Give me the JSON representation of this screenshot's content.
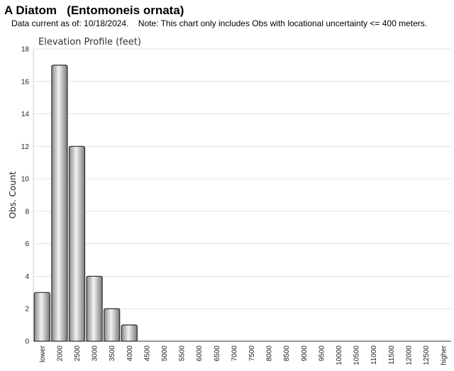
{
  "header": {
    "title": "A Diatom   (Entomoneis ornata)",
    "note": "Data current as of: 10/18/2024.    Note: This chart only includes Obs with locational uncertainty <= 400 meters."
  },
  "chart_data": {
    "type": "bar",
    "title": "Elevation Profile (feet)",
    "xlabel": "",
    "ylabel": "Obs. Count",
    "categories": [
      "lower",
      "2000",
      "2500",
      "3000",
      "3500",
      "4000",
      "4500",
      "5000",
      "5500",
      "6000",
      "6500",
      "7000",
      "7500",
      "8000",
      "8500",
      "9000",
      "9500",
      "10000",
      "10500",
      "11000",
      "11500",
      "12000",
      "12500",
      "higher"
    ],
    "values": [
      3,
      17,
      12,
      4,
      2,
      1,
      0,
      0,
      0,
      0,
      0,
      0,
      0,
      0,
      0,
      0,
      0,
      0,
      0,
      0,
      0,
      0,
      0,
      0
    ],
    "ylim": [
      0,
      18
    ],
    "yticks": [
      0,
      2,
      4,
      6,
      8,
      10,
      12,
      14,
      16,
      18
    ],
    "grid": true,
    "legend": "none",
    "bar_color": "#c0c0c0"
  }
}
